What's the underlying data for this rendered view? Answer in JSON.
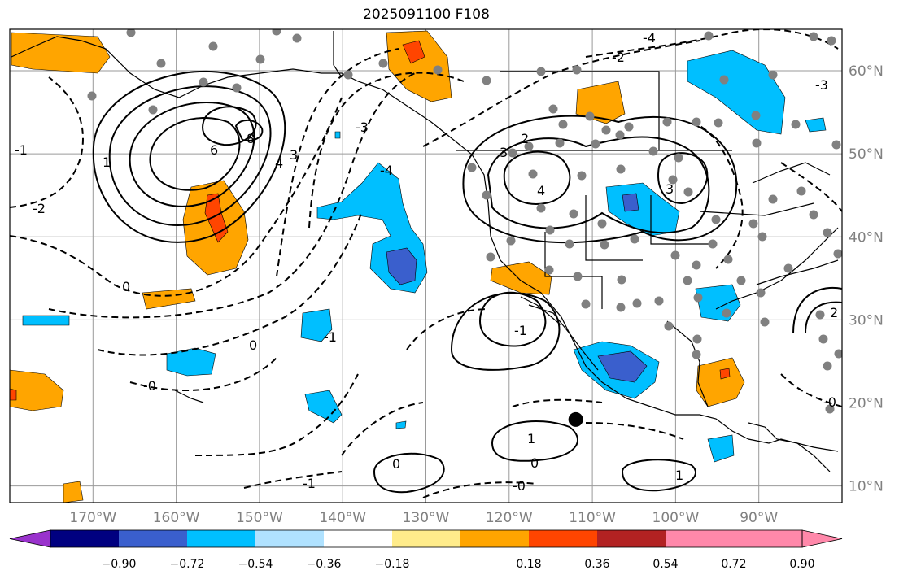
{
  "title": "2025091100 F108",
  "map": {
    "lon_range": [
      -180,
      -80
    ],
    "lat_range": [
      8,
      65
    ],
    "lat_labels": [
      {
        "lat": 60,
        "text": "60°N"
      },
      {
        "lat": 50,
        "text": "50°N"
      },
      {
        "lat": 40,
        "text": "40°N"
      },
      {
        "lat": 30,
        "text": "30°N"
      },
      {
        "lat": 20,
        "text": "20°N"
      },
      {
        "lat": 10,
        "text": "10°N"
      }
    ],
    "lon_labels": [
      {
        "lon": -170,
        "text": "170°W"
      },
      {
        "lon": -160,
        "text": "160°W"
      },
      {
        "lon": -150,
        "text": "150°W"
      },
      {
        "lon": -140,
        "text": "140°W"
      },
      {
        "lon": -130,
        "text": "130°W"
      },
      {
        "lon": -120,
        "text": "120°W"
      },
      {
        "lon": -110,
        "text": "110°W"
      },
      {
        "lon": -100,
        "text": "100°W"
      },
      {
        "lon": -90,
        "text": "90°W"
      }
    ],
    "contour_labels": [
      "8",
      "6",
      "4",
      "3",
      "1",
      "0",
      "-2",
      "-3",
      "-4",
      "-1",
      "0",
      "2",
      "3",
      "4",
      "3",
      "-0",
      "-1",
      "1",
      "0",
      "-1",
      "0",
      "-0",
      "1",
      "2",
      "-4",
      "-2",
      "-3",
      "-0",
      "-1"
    ],
    "storm_marker": {
      "lon": -112,
      "lat": 18
    }
  },
  "colorbar": {
    "colors": [
      "#9932cc",
      "#000080",
      "#3a5fcd",
      "#00bfff",
      "#b0e2ff",
      "#ffffff",
      "#ffec8b",
      "#ffa500",
      "#ff4500",
      "#b22222",
      "#ff88aa",
      "#ff88aa"
    ],
    "tick_labels": [
      "−0.90",
      "−0.72",
      "−0.54",
      "−0.36",
      "−0.18",
      "0.18",
      "0.36",
      "0.54",
      "0.72",
      "0.90"
    ]
  }
}
